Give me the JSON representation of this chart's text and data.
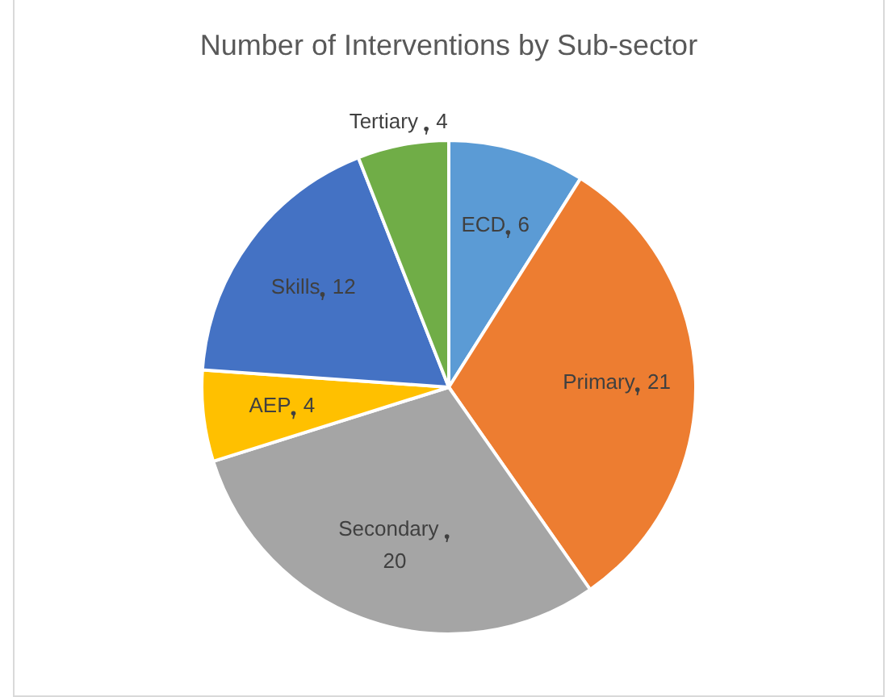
{
  "chart_data": {
    "type": "pie",
    "title": "Number of Interventions by Sub-sector",
    "categories": [
      "ECD",
      "Primary",
      "Secondary ",
      "AEP",
      "Skills",
      "Tertiary "
    ],
    "values": [
      6,
      21,
      20,
      4,
      12,
      4
    ],
    "colors": [
      "#5b9bd5",
      "#ed7d31",
      "#a5a5a5",
      "#ffc000",
      "#4472c4",
      "#70ad47"
    ],
    "data_labels": true,
    "legend": false
  }
}
